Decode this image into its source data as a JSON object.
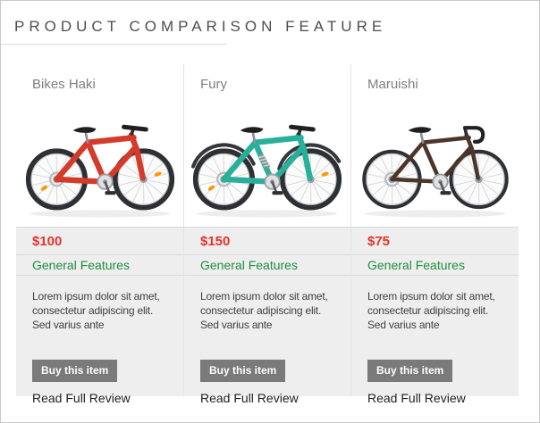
{
  "page": {
    "title": "PRODUCT COMPARISON FEATURE"
  },
  "colors": {
    "price": "#e5342d",
    "features_heading": "#1e8e3e",
    "button_bg": "#7a7a7a",
    "row_bg": "#eeeeee",
    "accent_border": "#dcdcdc"
  },
  "products": [
    {
      "name": "Bikes Haki",
      "price": "$100",
      "features_heading": "General Features",
      "description": "Lorem ipsum dolor sit amet, consectetur adipiscing elit. Sed varius ante",
      "buy_label": "Buy this item",
      "review_label": "Read Full Review",
      "bike": {
        "frame_color": "#d53b2b",
        "type": "mountain",
        "fenders": false,
        "suspension": false,
        "reflector_color": "#ff9800"
      }
    },
    {
      "name": "Fury",
      "price": "$150",
      "features_heading": "General Features",
      "description": "Lorem ipsum dolor sit amet, consectetur adipiscing elit. Sed varius ante",
      "buy_label": "Buy this item",
      "review_label": "Read Full Review",
      "bike": {
        "frame_color": "#28b09a",
        "type": "mountain",
        "fenders": true,
        "suspension": true,
        "reflector_color": "#ff9800"
      }
    },
    {
      "name": "Maruishi",
      "price": "$75",
      "features_heading": "General Features",
      "description": "Lorem ipsum dolor sit amet, consectetur adipiscing elit. Sed varius ante",
      "buy_label": "Buy this item",
      "review_label": "Read Full Review",
      "bike": {
        "frame_color": "#4c362b",
        "type": "road",
        "fenders": false,
        "suspension": false,
        "reflector_color": null
      }
    }
  ]
}
